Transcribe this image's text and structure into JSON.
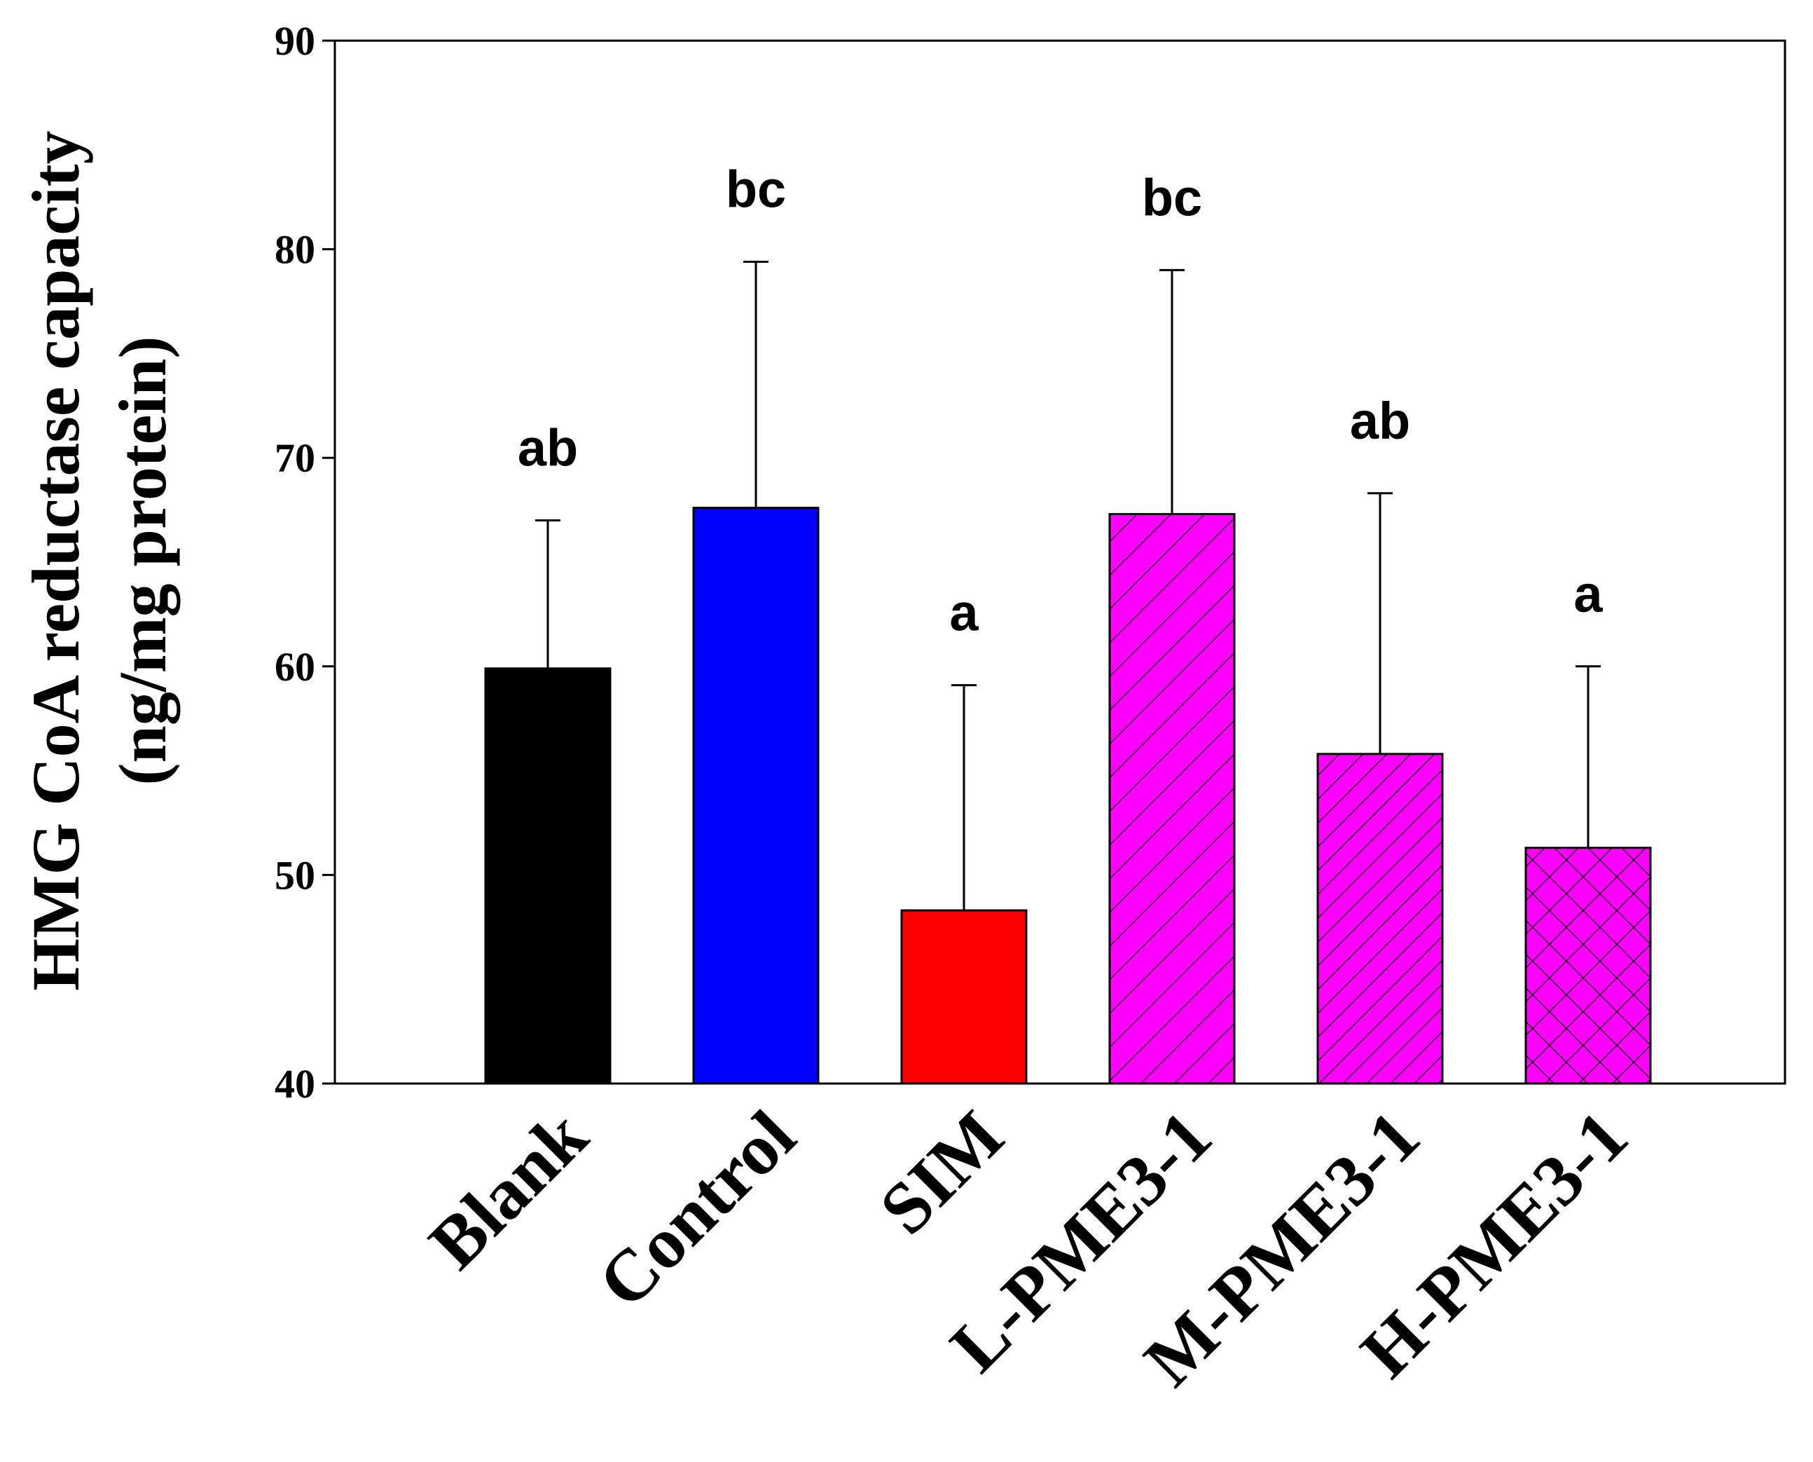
{
  "chart_data": {
    "type": "bar",
    "title": "",
    "xlabel": "",
    "ylabel_lines": [
      "HMG CoA reductase capacity",
      "(ng/mg protein)"
    ],
    "ylim": [
      40,
      90
    ],
    "yticks": [
      40,
      50,
      60,
      70,
      80,
      90
    ],
    "grid": false,
    "categories": [
      "Blank",
      "Control",
      "SIM",
      "L-PME3-1",
      "M-PME3-1",
      "H-PME3-1"
    ],
    "values": [
      59.9,
      67.6,
      48.3,
      67.3,
      55.8,
      51.3
    ],
    "errors": [
      7.1,
      11.8,
      10.8,
      11.7,
      12.5,
      8.7
    ],
    "significance": [
      "ab",
      "bc",
      "a",
      "bc",
      "ab",
      "a"
    ],
    "colors": [
      "#000000",
      "#0000ff",
      "#ff0000",
      "#ff00ff",
      "#ff00ff",
      "#ff00ff"
    ],
    "patterns": [
      "solid",
      "solid",
      "solid",
      "diagonal-wide",
      "diagonal-dense",
      "crosshatch"
    ]
  }
}
